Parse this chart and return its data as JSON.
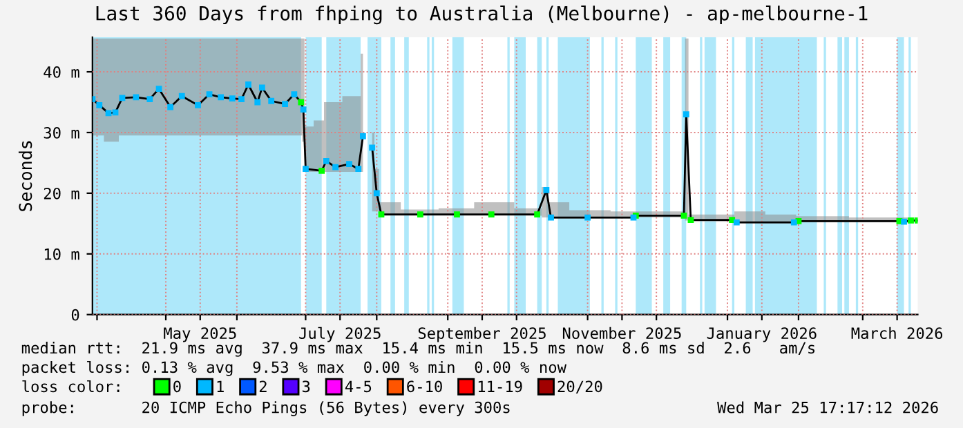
{
  "chart_data": {
    "type": "line",
    "title": "Last 360 Days from fhping to Australia (Melbourne) - ap-melbourne-1",
    "ylabel": "Seconds",
    "legend_title": "loss color:",
    "legend": "bottom",
    "grid": true,
    "xlim": [
      "2025-03-30",
      "2026-03-25"
    ],
    "xticks": [
      {
        "value": "2025-04-01",
        "label": null
      },
      {
        "value": "2025-05-01",
        "label": null
      },
      {
        "value": "2025-05-16",
        "label": "May 2025"
      },
      {
        "value": "2025-06-01",
        "label": null
      },
      {
        "value": "2025-07-01",
        "label": null
      },
      {
        "value": "2025-07-16",
        "label": "July 2025"
      },
      {
        "value": "2025-08-01",
        "label": null
      },
      {
        "value": "2025-09-01",
        "label": null
      },
      {
        "value": "2025-09-16",
        "label": "September 2025"
      },
      {
        "value": "2025-10-01",
        "label": null
      },
      {
        "value": "2025-11-01",
        "label": null
      },
      {
        "value": "2025-11-16",
        "label": "November 2025"
      },
      {
        "value": "2025-12-01",
        "label": null
      },
      {
        "value": "2026-01-01",
        "label": null
      },
      {
        "value": "2026-01-16",
        "label": "January 2026"
      },
      {
        "value": "2026-02-01",
        "label": null
      },
      {
        "value": "2026-03-01",
        "label": null
      },
      {
        "value": "2026-03-16",
        "label": "March 2026"
      }
    ],
    "ylim": [
      0,
      45.7
    ],
    "yticks": [
      0,
      {
        "value": 10,
        "label": "10 m"
      },
      {
        "value": 20,
        "label": "20 m"
      },
      {
        "value": 30,
        "label": "30 m"
      },
      {
        "value": 40,
        "label": "40 m"
      }
    ],
    "x": [
      "2025-03-30",
      "2025-04-02",
      "2025-04-06",
      "2025-04-09",
      "2025-04-12",
      "2025-04-18",
      "2025-04-24",
      "2025-04-28",
      "2025-05-03",
      "2025-05-08",
      "2025-05-15",
      "2025-05-20",
      "2025-05-25",
      "2025-05-30",
      "2025-06-03",
      "2025-06-06",
      "2025-06-10",
      "2025-06-12",
      "2025-06-16",
      "2025-06-22",
      "2025-06-26",
      "2025-06-29",
      "2025-06-30",
      "2025-07-01",
      "2025-07-08",
      "2025-07-10",
      "2025-07-14",
      "2025-07-20",
      "2025-07-24",
      "2025-07-26",
      "2025-07-27",
      "2025-07-30",
      "2025-08-01",
      "2025-08-03",
      "2025-08-20",
      "2025-09-05",
      "2025-09-20",
      "2025-10-10",
      "2025-10-14",
      "2025-10-16",
      "2025-11-01",
      "2025-11-21",
      "2025-11-22",
      "2025-12-13",
      "2025-12-14",
      "2025-12-16",
      "2026-01-03",
      "2026-01-05",
      "2026-01-30",
      "2026-02-01",
      "2026-03-17",
      "2026-03-19",
      "2026-03-22",
      "2026-03-25"
    ],
    "series": [
      {
        "color": "#000000",
        "values": [
          35.5,
          34.5,
          33.2,
          33.3,
          35.7,
          35.8,
          35.5,
          37.2,
          34.2,
          36.0,
          34.5,
          36.3,
          35.8,
          35.6,
          35.5,
          37.9,
          35.0,
          37.4,
          35.2,
          34.7,
          36.3,
          35.0,
          33.8,
          24.0,
          23.7,
          25.3,
          24.3,
          24.8,
          24.0,
          29.4,
          null,
          27.5,
          20.0,
          16.5,
          16.5,
          16.5,
          16.5,
          16.5,
          20.5,
          16.0,
          16.0,
          16.0,
          16.3,
          16.3,
          33.0,
          15.6,
          15.6,
          15.2,
          15.2,
          15.4,
          15.4,
          15.3,
          15.5,
          15.5
        ],
        "lower": [
          29.5,
          29.5,
          28.5,
          28.5,
          29.5,
          29.5,
          29.5,
          29.5,
          29.5,
          29.5,
          29.5,
          29.5,
          29.5,
          29.5,
          29.5,
          29.5,
          29.5,
          29.5,
          29.5,
          29.5,
          29.5,
          29.5,
          28.5,
          23.5,
          23.5,
          23.5,
          23.5,
          23.5,
          23.5,
          23.5,
          null,
          17.0,
          17.0,
          16.3,
          16.3,
          16.3,
          16.3,
          16.3,
          16.0,
          15.8,
          15.8,
          15.8,
          16.0,
          16.0,
          15.5,
          15.3,
          15.3,
          15.0,
          15.0,
          15.2,
          15.2,
          15.1,
          15.2,
          15.2
        ],
        "upper": [
          45.5,
          45.5,
          45.5,
          45.5,
          45.5,
          45.5,
          45.5,
          45.5,
          45.5,
          45.5,
          45.5,
          45.5,
          45.5,
          45.5,
          45.5,
          45.5,
          45.5,
          45.5,
          45.5,
          45.5,
          45.5,
          45.5,
          45.5,
          31.0,
          32.0,
          35.0,
          35.0,
          36.0,
          36.0,
          43.0,
          null,
          30.0,
          24.0,
          18.5,
          17.3,
          17.5,
          18.5,
          17.5,
          21.0,
          18.5,
          17.2,
          17.0,
          17.0,
          17.0,
          45.5,
          16.5,
          16.5,
          17.0,
          16.5,
          16.2,
          16.0,
          16.0,
          16.0,
          16.0
        ]
      },
      {
        "type": "scatter",
        "name": "0",
        "color": "#00ff00",
        "marker": "square",
        "values": [
          null,
          null,
          null,
          null,
          null,
          null,
          null,
          null,
          null,
          null,
          null,
          null,
          null,
          null,
          null,
          null,
          null,
          null,
          null,
          null,
          null,
          35.0,
          null,
          null,
          23.7,
          null,
          null,
          null,
          null,
          null,
          null,
          null,
          null,
          16.5,
          16.5,
          16.5,
          16.5,
          16.5,
          null,
          null,
          null,
          null,
          16.3,
          16.3,
          null,
          15.6,
          15.6,
          null,
          null,
          15.4,
          15.4,
          null,
          15.5,
          15.5
        ]
      },
      {
        "type": "scatter",
        "name": "1",
        "color": "#00b8ff",
        "marker": "square",
        "values": [
          35.5,
          34.5,
          33.2,
          33.3,
          35.7,
          35.8,
          35.5,
          37.2,
          34.2,
          36.0,
          34.5,
          36.3,
          35.8,
          35.6,
          35.5,
          37.9,
          35.0,
          37.4,
          35.2,
          34.7,
          36.3,
          null,
          33.8,
          24.0,
          null,
          25.3,
          24.3,
          24.8,
          24.0,
          29.4,
          null,
          27.5,
          20.0,
          null,
          null,
          null,
          null,
          null,
          20.5,
          16.0,
          16.0,
          16.0,
          null,
          null,
          33.0,
          null,
          null,
          15.2,
          15.2,
          null,
          null,
          15.3,
          null,
          null
        ]
      },
      {
        "type": "scatter",
        "name": "2",
        "color": "#0059ff",
        "marker": "square",
        "values": [
          null,
          null,
          null,
          null,
          null,
          null,
          null,
          null,
          null,
          null,
          null,
          null,
          null,
          null,
          null,
          null,
          null,
          null,
          null,
          null,
          null,
          null,
          null,
          null,
          null,
          null,
          null,
          null,
          null,
          null,
          null,
          null,
          null,
          null,
          null,
          null,
          null,
          null,
          null,
          null,
          null,
          null,
          null,
          null,
          null,
          null,
          null,
          null,
          null,
          null,
          null,
          null,
          null,
          null
        ]
      },
      {
        "type": "scatter",
        "name": "3",
        "color": "#5500ff",
        "marker": "square",
        "values": [
          null,
          null,
          null,
          null,
          null,
          null,
          null,
          null,
          null,
          null,
          null,
          null,
          null,
          null,
          null,
          null,
          null,
          null,
          null,
          null,
          null,
          null,
          null,
          null,
          null,
          null,
          null,
          null,
          null,
          null,
          null,
          null,
          null,
          null,
          null,
          null,
          null,
          null,
          null,
          null,
          null,
          null,
          null,
          null,
          null,
          null,
          null,
          null,
          null,
          null,
          null,
          null,
          null,
          null
        ]
      },
      {
        "type": "scatter",
        "name": "4-5",
        "color": "#ff00ff",
        "marker": "square",
        "values": [
          null,
          null,
          null,
          null,
          null,
          null,
          null,
          null,
          null,
          null,
          null,
          null,
          null,
          null,
          null,
          null,
          null,
          null,
          null,
          null,
          null,
          null,
          null,
          null,
          null,
          null,
          null,
          null,
          null,
          null,
          null,
          null,
          null,
          null,
          null,
          null,
          null,
          null,
          null,
          null,
          null,
          null,
          null,
          null,
          null,
          null,
          null,
          null,
          null,
          null,
          null,
          null,
          null,
          null
        ]
      },
      {
        "type": "scatter",
        "name": "6-10",
        "color": "#ff5500",
        "marker": "square",
        "values": [
          null,
          null,
          null,
          null,
          null,
          null,
          null,
          null,
          null,
          null,
          null,
          null,
          null,
          null,
          null,
          null,
          null,
          null,
          null,
          null,
          null,
          null,
          null,
          null,
          null,
          null,
          null,
          null,
          null,
          null,
          null,
          null,
          null,
          null,
          null,
          null,
          null,
          null,
          null,
          null,
          null,
          null,
          null,
          null,
          null,
          null,
          null,
          null,
          null,
          null,
          null,
          null,
          null,
          null
        ]
      },
      {
        "type": "scatter",
        "name": "11-19",
        "color": "#ff0000",
        "marker": "square",
        "values": [
          null,
          null,
          null,
          null,
          null,
          null,
          null,
          null,
          null,
          null,
          null,
          null,
          null,
          null,
          null,
          null,
          null,
          null,
          null,
          null,
          null,
          null,
          null,
          null,
          null,
          null,
          null,
          null,
          null,
          null,
          null,
          null,
          null,
          null,
          null,
          null,
          null,
          null,
          null,
          null,
          null,
          null,
          null,
          null,
          null,
          null,
          null,
          null,
          null,
          null,
          null,
          null,
          null,
          null
        ]
      },
      {
        "type": "scatter",
        "name": "20/20",
        "color": "#a10000",
        "marker": "square",
        "values": [
          null,
          null,
          null,
          null,
          null,
          null,
          null,
          null,
          null,
          null,
          null,
          null,
          null,
          null,
          null,
          null,
          null,
          null,
          null,
          null,
          null,
          null,
          null,
          null,
          null,
          null,
          null,
          null,
          null,
          null,
          null,
          null,
          null,
          null,
          null,
          null,
          null,
          null,
          null,
          null,
          null,
          null,
          null,
          null,
          null,
          null,
          null,
          null,
          null,
          null,
          null,
          null,
          null,
          null
        ]
      }
    ],
    "bands": [
      {
        "axis": "x",
        "from": "2025-03-30",
        "to": "2025-06-29",
        "color": "#aee8fa"
      },
      {
        "axis": "x",
        "from": "2025-07-01",
        "to": "2025-07-08",
        "color": "#aee8fa"
      },
      {
        "axis": "x",
        "from": "2025-07-10",
        "to": "2025-07-25",
        "color": "#aee8fa"
      },
      {
        "axis": "x",
        "from": "2025-07-28",
        "to": "2025-08-03",
        "color": "#aee8fa"
      },
      {
        "axis": "x",
        "from": "2025-08-07",
        "to": "2025-08-09",
        "color": "#aee8fa"
      },
      {
        "axis": "x",
        "from": "2025-08-13",
        "to": "2025-08-15",
        "color": "#aee8fa"
      },
      {
        "axis": "x",
        "from": "2025-08-23",
        "to": "2025-08-24",
        "color": "#aee8fa"
      },
      {
        "axis": "x",
        "from": "2025-08-25",
        "to": "2025-08-26",
        "color": "#aee8fa"
      },
      {
        "axis": "x",
        "from": "2025-09-03",
        "to": "2025-09-08",
        "color": "#aee8fa"
      },
      {
        "axis": "x",
        "from": "2025-09-27",
        "to": "2025-09-28",
        "color": "#aee8fa"
      },
      {
        "axis": "x",
        "from": "2025-09-30",
        "to": "2025-10-05",
        "color": "#aee8fa"
      },
      {
        "axis": "x",
        "from": "2025-10-10",
        "to": "2025-10-12",
        "color": "#aee8fa"
      },
      {
        "axis": "x",
        "from": "2025-10-14",
        "to": "2025-10-15",
        "color": "#aee8fa"
      },
      {
        "axis": "x",
        "from": "2025-10-19",
        "to": "2025-11-02",
        "color": "#aee8fa"
      },
      {
        "axis": "x",
        "from": "2025-11-07",
        "to": "2025-11-08",
        "color": "#aee8fa"
      },
      {
        "axis": "x",
        "from": "2025-11-13",
        "to": "2025-11-14",
        "color": "#aee8fa"
      },
      {
        "axis": "x",
        "from": "2025-11-22",
        "to": "2025-11-29",
        "color": "#aee8fa"
      },
      {
        "axis": "x",
        "from": "2025-12-04",
        "to": "2025-12-07",
        "color": "#aee8fa"
      },
      {
        "axis": "x",
        "from": "2025-12-12",
        "to": "2025-12-14",
        "color": "#aee8fa"
      },
      {
        "axis": "x",
        "from": "2025-12-20",
        "to": "2025-12-21",
        "color": "#aee8fa"
      },
      {
        "axis": "x",
        "from": "2025-12-22",
        "to": "2025-12-27",
        "color": "#aee8fa"
      },
      {
        "axis": "x",
        "from": "2026-01-03",
        "to": "2026-01-04",
        "color": "#aee8fa"
      },
      {
        "axis": "x",
        "from": "2026-01-09",
        "to": "2026-01-12",
        "color": "#aee8fa"
      },
      {
        "axis": "x",
        "from": "2026-01-13",
        "to": "2026-02-09",
        "color": "#aee8fa"
      },
      {
        "axis": "x",
        "from": "2026-02-12",
        "to": "2026-02-13",
        "color": "#aee8fa"
      },
      {
        "axis": "x",
        "from": "2026-02-18",
        "to": "2026-02-20",
        "color": "#aee8fa"
      },
      {
        "axis": "x",
        "from": "2026-02-21",
        "to": "2026-02-23",
        "color": "#aee8fa"
      },
      {
        "axis": "x",
        "from": "2026-02-26",
        "to": "2026-02-27",
        "color": "#aee8fa"
      },
      {
        "axis": "x",
        "from": "2026-03-16",
        "to": "2026-03-19",
        "color": "#aee8fa"
      },
      {
        "axis": "x",
        "from": "2026-03-21",
        "to": "2026-03-22",
        "color": "#aee8fa"
      }
    ],
    "annotations": [
      "median rtt:  21.9 ms avg  37.9 ms max  15.4 ms min  15.5 ms now  8.6 ms sd  2.6   am/s",
      "packet loss: 0.13 % avg  9.53 % max  0.00 % min  0.00 % now",
      "probe:       20 ICMP Echo Pings (56 Bytes) every 300s",
      "Wed Mar 25 17:17:12 2026"
    ]
  }
}
